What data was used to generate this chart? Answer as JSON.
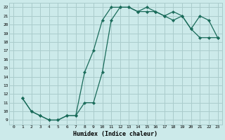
{
  "xlabel": "Humidex (Indice chaleur)",
  "bg_color": "#cceaea",
  "grid_color": "#aacccc",
  "line_color": "#1a6b5a",
  "xlim": [
    -0.5,
    23.5
  ],
  "ylim": [
    8.5,
    22.5
  ],
  "xticks": [
    0,
    1,
    2,
    3,
    4,
    5,
    6,
    7,
    8,
    9,
    10,
    11,
    12,
    13,
    14,
    15,
    16,
    17,
    18,
    19,
    20,
    21,
    22,
    23
  ],
  "yticks": [
    9,
    10,
    11,
    12,
    13,
    14,
    15,
    16,
    17,
    18,
    19,
    20,
    21,
    22
  ],
  "line1_x": [
    1,
    2,
    3,
    4,
    5,
    6,
    7,
    8,
    9,
    10,
    11,
    12,
    13,
    14,
    15,
    16,
    17,
    18,
    19,
    20,
    21,
    22,
    23
  ],
  "line1_y": [
    11.5,
    10.0,
    9.5,
    9.0,
    9.0,
    9.5,
    9.5,
    14.5,
    17.0,
    20.5,
    22.0,
    22.0,
    22.0,
    21.5,
    22.0,
    21.5,
    21.0,
    21.5,
    21.0,
    19.5,
    21.0,
    20.5,
    18.5
  ],
  "line2_x": [
    1,
    2,
    3,
    4,
    5,
    6,
    7,
    8,
    9,
    10,
    11,
    12,
    13,
    14,
    15,
    16,
    17,
    18,
    19,
    20,
    21,
    22,
    23
  ],
  "line2_y": [
    11.5,
    10.0,
    9.5,
    9.0,
    9.0,
    9.5,
    9.5,
    11.0,
    11.0,
    14.5,
    20.5,
    22.0,
    22.0,
    21.5,
    21.5,
    21.5,
    21.0,
    20.5,
    21.0,
    19.5,
    18.5,
    18.5,
    18.5
  ]
}
